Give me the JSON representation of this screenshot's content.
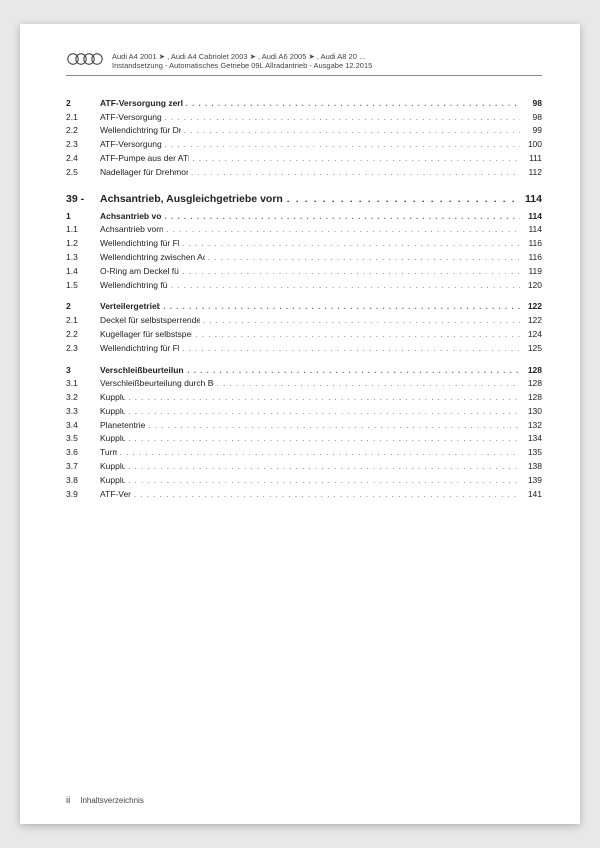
{
  "header": {
    "line1": "Audi A4 2001 ➤ , Audi A4 Cabriolet 2003 ➤ , Audi A6 2005 ➤ , Audi A8 20 ...",
    "line2": "Instandsetzung - Automatisches Getriebe 09L Allradantrieb - Ausgabe 12.2015"
  },
  "sections": [
    {
      "type": "item",
      "bold": true,
      "num": "2",
      "title": "ATF-Versorgung zerlegen und zusammenbauen",
      "page": "98"
    },
    {
      "type": "item",
      "num": "2.1",
      "title": "ATF-Versorgung - Bauteileübersicht",
      "page": "98"
    },
    {
      "type": "item",
      "num": "2.2",
      "title": "Wellendichtring für Drehmomentwandler ersetzen",
      "page": "99"
    },
    {
      "type": "item",
      "num": "2.3",
      "title": "ATF-Versorgung aus- und einbauen",
      "page": "100"
    },
    {
      "type": "item",
      "num": "2.4",
      "title": "ATF-Pumpe aus der ATF-Versorgung aus- und einbauen",
      "page": "111"
    },
    {
      "type": "item",
      "num": "2.5",
      "title": "Nadellager für Drehmomentwandler aus- und einbauen",
      "page": "112"
    },
    {
      "type": "chapter",
      "num": "39 -",
      "title": "Achsantrieb, Ausgleichgetriebe vorn",
      "page": "114"
    },
    {
      "type": "item",
      "bold": true,
      "num": "1",
      "title": "Achsantrieb vorn in Stand setzen",
      "page": "114"
    },
    {
      "type": "item",
      "num": "1.1",
      "title": "Achsantrieb vorn - Montageübersicht",
      "page": "114"
    },
    {
      "type": "item",
      "num": "1.2",
      "title": "Wellendichtring für Flanschwelle rechts ersetzen",
      "page": "116"
    },
    {
      "type": "item",
      "num": "1.3",
      "title": "Wellendichtring zwischen Achsantrieb und Getriebegehäuse ersetzen",
      "page": "116"
    },
    {
      "type": "item",
      "num": "1.4",
      "title": "O-Ring am Deckel für Achsantrieb vorn ersetzen",
      "page": "119"
    },
    {
      "type": "item",
      "num": "1.5",
      "title": "Wellendichtring für Schaltwelle ersetzen",
      "page": "120"
    },
    {
      "type": "gap"
    },
    {
      "type": "item",
      "bold": true,
      "num": "2",
      "title": "Verteilergetriebe in Stand setzen",
      "page": "122"
    },
    {
      "type": "item",
      "num": "2.1",
      "title": "Deckel für selbstsperrendes Mittendifferenzial aus- und einbauen",
      "page": "122"
    },
    {
      "type": "item",
      "num": "2.2",
      "title": "Kugellager für selbstsperrendes Mittendifferenzial ersetzen",
      "page": "124"
    },
    {
      "type": "item",
      "num": "2.3",
      "title": "Wellendichtring für Flanschwelle hinten ersetzen",
      "page": "125"
    },
    {
      "type": "gap"
    },
    {
      "type": "item",
      "bold": true,
      "num": "3",
      "title": "Verschleißbeurteilung der Getriebekomponenten",
      "page": "128"
    },
    {
      "type": "item",
      "num": "3.1",
      "title": "Verschleißbeurteilung durch Bewertung der ATF-Färbung und Verunreinigung",
      "page": "128"
    },
    {
      "type": "item",
      "num": "3.2",
      "title": "Kupplung „C“",
      "page": "128"
    },
    {
      "type": "item",
      "num": "3.3",
      "title": "Kupplung „D“",
      "page": "130"
    },
    {
      "type": "item",
      "num": "3.4",
      "title": "Planetentrieb „II“ und „III“",
      "page": "132"
    },
    {
      "type": "item",
      "num": "3.5",
      "title": "Kupplung „B“",
      "page": "134"
    },
    {
      "type": "item",
      "num": "3.6",
      "title": "Turm „II“",
      "page": "135"
    },
    {
      "type": "item",
      "num": "3.7",
      "title": "Kupplung „A“",
      "page": "138"
    },
    {
      "type": "item",
      "num": "3.8",
      "title": "Kupplung „E“",
      "page": "139"
    },
    {
      "type": "item",
      "num": "3.9",
      "title": "ATF-Versorgung",
      "page": "141"
    }
  ],
  "footer": {
    "pagenum": "ii",
    "label": "Inhaltsverzeichnis"
  }
}
